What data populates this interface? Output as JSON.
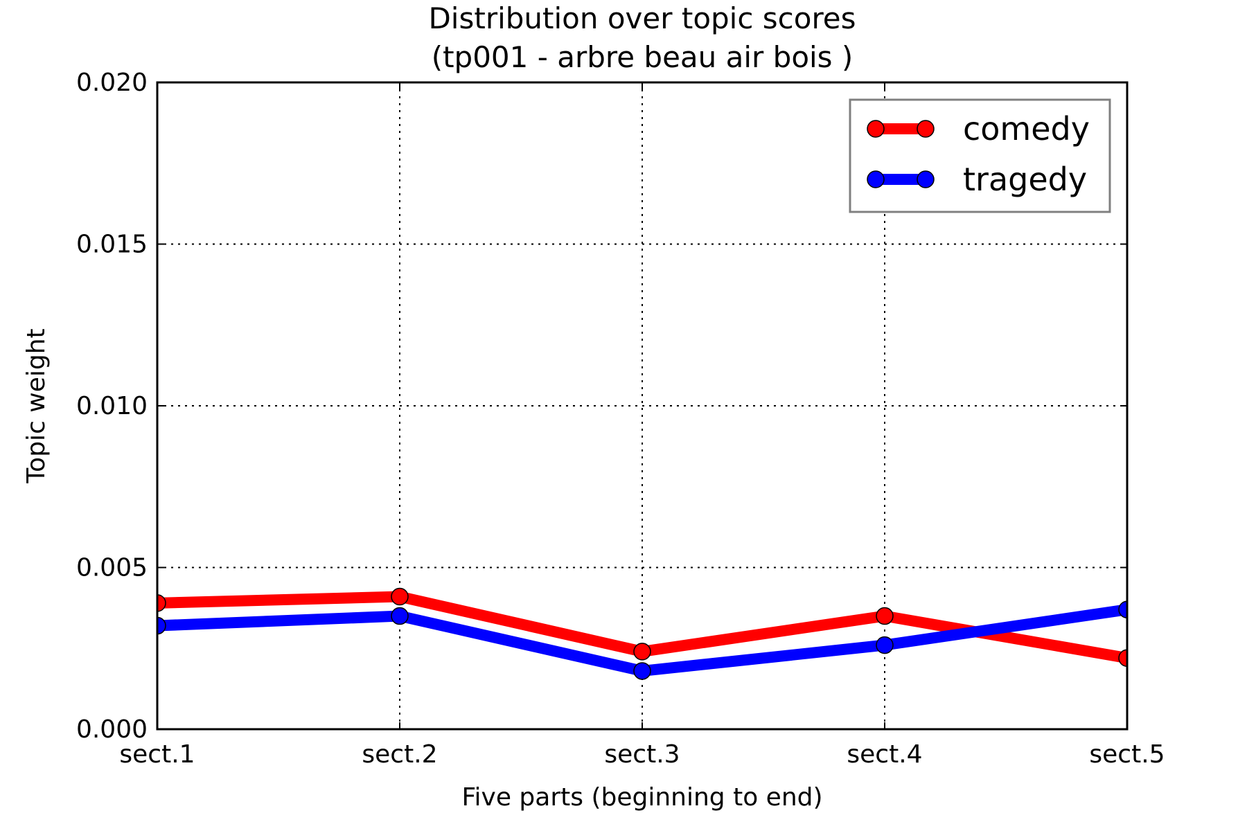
{
  "chart_data": {
    "type": "line",
    "title": "Distribution over topic scores",
    "subtitle": "(tp001 - arbre beau air bois )",
    "xlabel": "Five parts (beginning to end)",
    "ylabel": "Topic weight",
    "categories": [
      "sect.1",
      "sect.2",
      "sect.3",
      "sect.4",
      "sect.5"
    ],
    "ylim": [
      0,
      0.02
    ],
    "yticks": [
      "0.000",
      "0.005",
      "0.010",
      "0.015",
      "0.020"
    ],
    "grid": true,
    "legend_position": "top-right",
    "series": [
      {
        "name": "comedy",
        "color": "#ff0000",
        "values": [
          0.0039,
          0.0041,
          0.0024,
          0.0035,
          0.0022
        ]
      },
      {
        "name": "tragedy",
        "color": "#0000ff",
        "values": [
          0.0032,
          0.0035,
          0.0018,
          0.0026,
          0.0037
        ]
      }
    ]
  }
}
